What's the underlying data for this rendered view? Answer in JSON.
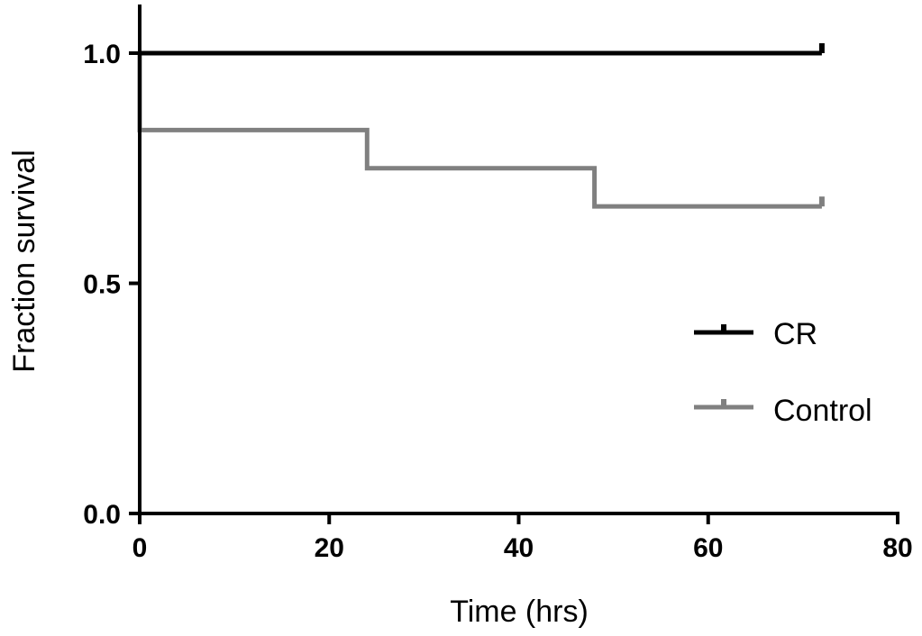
{
  "chart_data": {
    "type": "line",
    "step": true,
    "xlabel": "Time (hrs)",
    "ylabel": "Fraction survival",
    "xlim": [
      0,
      80
    ],
    "ylim": [
      0,
      1.0
    ],
    "x_ticks": [
      "0",
      "20",
      "40",
      "60",
      "80"
    ],
    "y_ticks": [
      "0.0",
      "0.5",
      "1.0"
    ],
    "grid": false,
    "legend_position": "right",
    "series": [
      {
        "name": "CR",
        "color": "#000000",
        "x": [
          0,
          72
        ],
        "y": [
          1.0,
          1.0
        ],
        "censored_at": [
          72
        ]
      },
      {
        "name": "Control",
        "color": "#808080",
        "x": [
          0,
          0,
          24,
          48,
          72
        ],
        "y": [
          1.0,
          0.833,
          0.75,
          0.667,
          0.667
        ],
        "censored_at": [
          72
        ]
      }
    ]
  }
}
